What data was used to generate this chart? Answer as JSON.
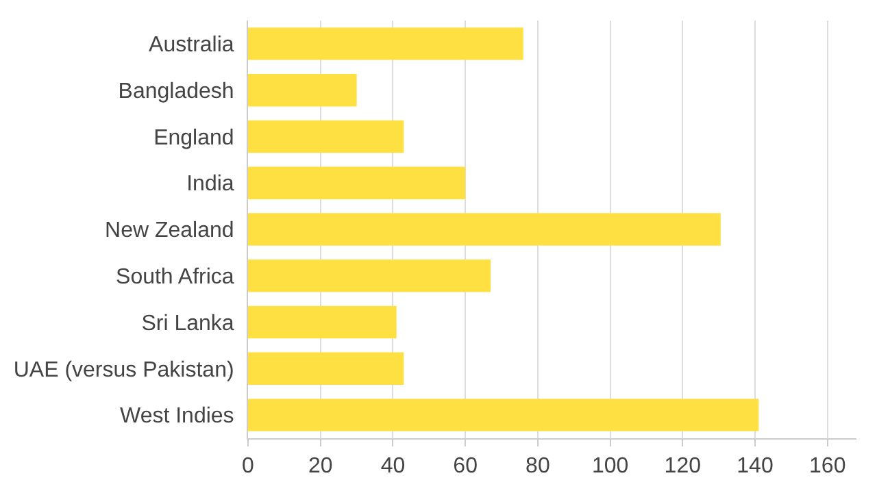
{
  "chart_data": {
    "type": "bar",
    "orientation": "horizontal",
    "categories": [
      "Australia",
      "Bangladesh",
      "England",
      "India",
      "New Zealand",
      "South Africa",
      "Sri Lanka",
      "UAE (versus Pakistan)",
      "West Indies"
    ],
    "values": [
      76,
      30,
      43,
      60,
      130.5,
      67,
      41,
      43,
      141
    ],
    "color": "#ffe042",
    "xlim": [
      0,
      168
    ],
    "xticks": [
      0,
      20,
      40,
      60,
      80,
      100,
      120,
      140,
      160
    ],
    "grid": "x"
  }
}
